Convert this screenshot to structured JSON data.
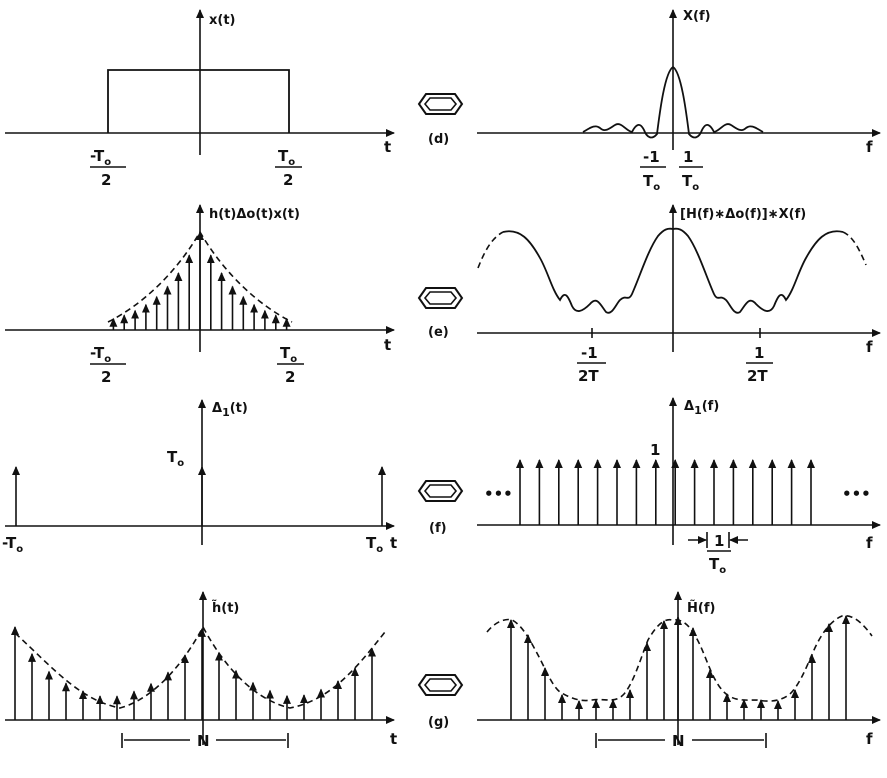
{
  "rows": [
    {
      "label": "(d)",
      "time": {
        "y_label": "x(t)",
        "x_label": "t",
        "ticks": [
          "-To/2",
          "To/2"
        ]
      },
      "freq": {
        "y_label": "X(f)",
        "x_label": "f",
        "ticks": [
          "-1/To",
          "1/To"
        ]
      }
    },
    {
      "label": "(e)",
      "time": {
        "y_label": "h(t)Δo(t)x(t)",
        "x_label": "t",
        "ticks": [
          "-To/2",
          "To/2"
        ]
      },
      "freq": {
        "y_label": "[H(f)∗Δo(f)]∗X(f)",
        "x_label": "f",
        "ticks": [
          "-1/2T",
          "1/2T"
        ]
      }
    },
    {
      "label": "(f)",
      "time": {
        "y_label": "Δ1(t)",
        "x_label": "t",
        "ticks": [
          "-To",
          "To"
        ],
        "height_label": "To"
      },
      "freq": {
        "y_label": "Δ1(f)",
        "x_label": "f",
        "ticks": [
          "1/To"
        ],
        "height_label": "1",
        "ellipsis": "•••"
      }
    },
    {
      "label": "(g)",
      "time": {
        "y_label": "h̃(t)",
        "x_label": "t",
        "period_label": "N"
      },
      "freq": {
        "y_label": "H̃(f)",
        "x_label": "f",
        "period_label": "N"
      }
    }
  ],
  "operator_icon": "convolution-hexagon-icon"
}
